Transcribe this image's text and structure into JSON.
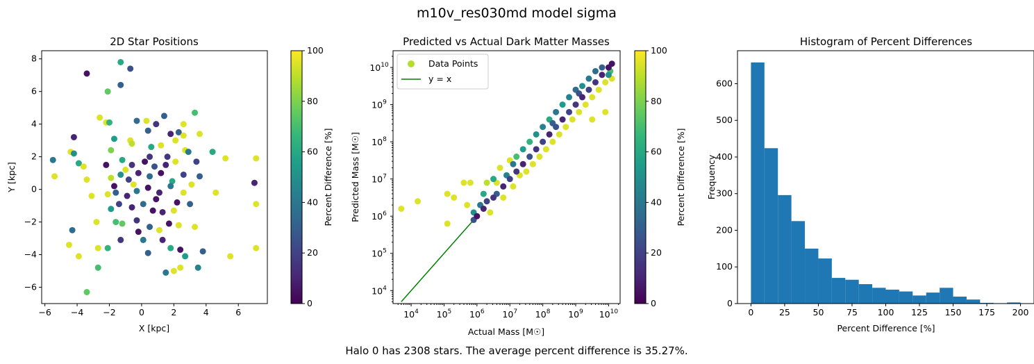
{
  "figure": {
    "suptitle": "m10v_res030md model sigma",
    "footer": "Halo 0 has 2308 stars. The average percent difference is 35.27%."
  },
  "colors": {
    "viridis_stops": [
      "#440154",
      "#482878",
      "#3e4989",
      "#31688e",
      "#26828e",
      "#1f9e89",
      "#35b779",
      "#6ece58",
      "#b5de2b",
      "#fde725"
    ],
    "line": "#008000",
    "bars": "#1f77b4",
    "legend_marker": "#b5de2b"
  },
  "chart_data": [
    {
      "id": "positions",
      "type": "scatter",
      "title": "2D Star Positions",
      "xlabel": "X [kpc]",
      "ylabel": "Y [kpc]",
      "xlim": [
        -6.2,
        7.8
      ],
      "ylim": [
        -7.0,
        8.5
      ],
      "xticks": [
        -6,
        -4,
        -2,
        0,
        2,
        4,
        6
      ],
      "yticks": [
        -6,
        -4,
        -2,
        0,
        2,
        4,
        6,
        8
      ],
      "colorbar": {
        "label": "Percent Difference [%]",
        "range": [
          0,
          100
        ],
        "ticks": [
          0,
          20,
          40,
          60,
          80,
          100
        ]
      },
      "points": [
        [
          -3.4,
          7.1,
          5
        ],
        [
          -1.3,
          7.8,
          60
        ],
        [
          -0.7,
          7.4,
          25
        ],
        [
          -2.1,
          6.0,
          75
        ],
        [
          -1.3,
          6.4,
          30
        ],
        [
          -2.6,
          4.4,
          95
        ],
        [
          -2.2,
          4.1,
          95
        ],
        [
          -2.0,
          4.1,
          65
        ],
        [
          -0.3,
          4.2,
          35
        ],
        [
          0.3,
          4.2,
          95
        ],
        [
          1.4,
          4.5,
          30
        ],
        [
          3.3,
          4.7,
          70
        ],
        [
          2.6,
          4.0,
          95
        ],
        [
          -4.2,
          3.2,
          10
        ],
        [
          -1.7,
          3.1,
          55
        ],
        [
          -0.7,
          3.0,
          95
        ],
        [
          0.4,
          3.6,
          30
        ],
        [
          0.9,
          4.0,
          15
        ],
        [
          1.8,
          3.4,
          10
        ],
        [
          2.3,
          3.5,
          30
        ],
        [
          2.6,
          3.3,
          95
        ],
        [
          3.6,
          3.4,
          95
        ],
        [
          -4.4,
          2.3,
          95
        ],
        [
          -4.2,
          2.2,
          50
        ],
        [
          -1.9,
          2.4,
          80
        ],
        [
          -0.6,
          2.8,
          90
        ],
        [
          0.5,
          2.0,
          15
        ],
        [
          1.2,
          2.7,
          95
        ],
        [
          2.1,
          3.0,
          95
        ],
        [
          2.7,
          2.4,
          95
        ],
        [
          2.9,
          2.3,
          40
        ],
        [
          4.4,
          2.3,
          60
        ],
        [
          -5.5,
          1.8,
          40
        ],
        [
          -3.9,
          1.6,
          60
        ],
        [
          -3.6,
          1.4,
          95
        ],
        [
          -2.2,
          1.5,
          5
        ],
        [
          -1.2,
          1.8,
          60
        ],
        [
          -0.6,
          1.5,
          15
        ],
        [
          0.2,
          1.7,
          5
        ],
        [
          0.8,
          1.4,
          25
        ],
        [
          1.5,
          1.5,
          10
        ],
        [
          2.1,
          1.7,
          95
        ],
        [
          3.4,
          1.7,
          20
        ],
        [
          5.2,
          1.9,
          95
        ],
        [
          7.1,
          1.9,
          95
        ],
        [
          -5.4,
          0.8,
          95
        ],
        [
          -3.4,
          0.6,
          95
        ],
        [
          -1.9,
          0.7,
          90
        ],
        [
          -1.3,
          0.9,
          50
        ],
        [
          -0.8,
          0.6,
          20
        ],
        [
          -0.2,
          1.0,
          10
        ],
        [
          0.5,
          0.8,
          35
        ],
        [
          1.2,
          1.0,
          5
        ],
        [
          1.9,
          0.5,
          60
        ],
        [
          2.6,
          0.9,
          20
        ],
        [
          3.6,
          0.8,
          30
        ],
        [
          7.0,
          0.4,
          10
        ],
        [
          -3.1,
          -0.4,
          95
        ],
        [
          -2.1,
          -0.3,
          95
        ],
        [
          -1.6,
          -0.2,
          30
        ],
        [
          -0.9,
          -0.4,
          10
        ],
        [
          -0.3,
          -0.1,
          40
        ],
        [
          0.4,
          0.1,
          5
        ],
        [
          1.1,
          -0.2,
          10
        ],
        [
          1.8,
          0.2,
          40
        ],
        [
          2.6,
          -0.2,
          95
        ],
        [
          3.1,
          0.3,
          95
        ],
        [
          4.6,
          -0.2,
          95
        ],
        [
          -1.9,
          -1.2,
          55
        ],
        [
          -1.4,
          -0.9,
          20
        ],
        [
          -0.6,
          -1.1,
          10
        ],
        [
          0.1,
          -0.9,
          35
        ],
        [
          0.7,
          -1.3,
          5
        ],
        [
          1.3,
          -1.4,
          10
        ],
        [
          2.0,
          -1.3,
          95
        ],
        [
          3.0,
          -0.9,
          30
        ],
        [
          7.1,
          -0.9,
          95
        ],
        [
          -4.3,
          -2.5,
          35
        ],
        [
          -2.8,
          -2.0,
          95
        ],
        [
          -1.6,
          -2.0,
          70
        ],
        [
          -1.2,
          -2.1,
          75
        ],
        [
          -0.3,
          -1.9,
          15
        ],
        [
          0.5,
          -2.3,
          30
        ],
        [
          1.1,
          -2.5,
          95
        ],
        [
          1.7,
          -2.1,
          5
        ],
        [
          2.3,
          -2.2,
          95
        ],
        [
          3.3,
          -2.3,
          95
        ],
        [
          -4.5,
          -3.4,
          95
        ],
        [
          -3.9,
          -4.1,
          95
        ],
        [
          -2.7,
          -3.6,
          95
        ],
        [
          -2.1,
          -3.6,
          65
        ],
        [
          -1.3,
          -3.1,
          15
        ],
        [
          0.1,
          -3.1,
          40
        ],
        [
          0.4,
          -3.9,
          30
        ],
        [
          1.3,
          -3.1,
          10
        ],
        [
          1.8,
          -3.6,
          60
        ],
        [
          2.4,
          -3.7,
          5
        ],
        [
          3.8,
          -3.8,
          30
        ],
        [
          5.5,
          -4.1,
          95
        ],
        [
          7.1,
          -3.6,
          95
        ],
        [
          -2.7,
          -4.8,
          70
        ],
        [
          -3.4,
          -6.3,
          75
        ],
        [
          1.5,
          -5.1,
          40
        ],
        [
          2.0,
          -5.0,
          95
        ],
        [
          2.4,
          -4.8,
          95
        ],
        [
          2.7,
          -4.1,
          55
        ],
        [
          3.5,
          -4.8,
          45
        ],
        [
          -0.5,
          0.3,
          95
        ],
        [
          0.9,
          -0.6,
          5
        ],
        [
          -1.0,
          1.2,
          95
        ],
        [
          1.6,
          2.0,
          15
        ],
        [
          -0.2,
          -2.6,
          5
        ],
        [
          0.6,
          2.6,
          60
        ],
        [
          2.2,
          -0.8,
          5
        ],
        [
          -1.7,
          0.2,
          5
        ]
      ]
    },
    {
      "id": "masses",
      "type": "scatter",
      "scale": "log",
      "title": "Predicted vs Actual Dark Matter Masses",
      "xlabel": "Actual Mass [M☉]",
      "ylabel": "Predicted Mass [M☉]",
      "xlim_log10": [
        3.45,
        10.35
      ],
      "ylim_log10": [
        3.65,
        10.45
      ],
      "xticks_log10": [
        4,
        5,
        6,
        7,
        8,
        9,
        10
      ],
      "yticks_log10": [
        4,
        5,
        6,
        7,
        8,
        9,
        10
      ],
      "colorbar": {
        "label": "Percent Difference [%]",
        "range": [
          0,
          100
        ],
        "ticks": [
          0,
          20,
          40,
          60,
          80,
          100
        ]
      },
      "legend": {
        "location": "upper-left",
        "entries": [
          "Data Points",
          "y = x"
        ]
      },
      "line": {
        "name": "y = x",
        "x_log10": [
          3.7,
          6.0
        ],
        "y_log10": [
          3.7,
          6.0
        ]
      },
      "points_log10": [
        [
          3.7,
          6.2,
          95
        ],
        [
          4.2,
          6.4,
          95
        ],
        [
          5.1,
          5.8,
          95
        ],
        [
          5.1,
          6.6,
          95
        ],
        [
          5.3,
          6.5,
          95
        ],
        [
          5.6,
          6.9,
          95
        ],
        [
          5.8,
          6.9,
          95
        ],
        [
          5.7,
          6.3,
          95
        ],
        [
          5.9,
          6.1,
          50
        ],
        [
          5.9,
          5.9,
          25
        ],
        [
          6.0,
          6.0,
          5
        ],
        [
          6.1,
          6.3,
          40
        ],
        [
          6.2,
          6.6,
          60
        ],
        [
          6.2,
          6.2,
          10
        ],
        [
          6.3,
          6.9,
          90
        ],
        [
          6.3,
          6.4,
          20
        ],
        [
          6.4,
          6.1,
          95
        ],
        [
          6.5,
          6.5,
          15
        ],
        [
          6.5,
          7.0,
          60
        ],
        [
          6.6,
          6.6,
          30
        ],
        [
          6.7,
          7.3,
          95
        ],
        [
          6.8,
          6.8,
          10
        ],
        [
          6.8,
          6.5,
          95
        ],
        [
          6.9,
          7.1,
          45
        ],
        [
          7.0,
          7.0,
          20
        ],
        [
          7.0,
          7.5,
          95
        ],
        [
          7.1,
          6.8,
          95
        ],
        [
          7.2,
          7.2,
          15
        ],
        [
          7.2,
          7.6,
          70
        ],
        [
          7.3,
          7.1,
          95
        ],
        [
          7.4,
          7.4,
          10
        ],
        [
          7.4,
          7.8,
          55
        ],
        [
          7.5,
          7.2,
          95
        ],
        [
          7.6,
          7.6,
          25
        ],
        [
          7.6,
          8.0,
          65
        ],
        [
          7.7,
          7.4,
          95
        ],
        [
          7.8,
          7.8,
          15
        ],
        [
          7.8,
          8.2,
          50
        ],
        [
          7.9,
          7.6,
          95
        ],
        [
          8.0,
          8.0,
          20
        ],
        [
          8.0,
          8.4,
          45
        ],
        [
          8.1,
          7.8,
          95
        ],
        [
          8.2,
          8.2,
          10
        ],
        [
          8.2,
          8.6,
          60
        ],
        [
          8.3,
          8.0,
          95
        ],
        [
          8.4,
          8.4,
          25
        ],
        [
          8.4,
          8.8,
          40
        ],
        [
          8.5,
          8.2,
          95
        ],
        [
          8.6,
          8.6,
          10
        ],
        [
          8.6,
          9.0,
          55
        ],
        [
          8.7,
          8.4,
          95
        ],
        [
          8.8,
          8.8,
          20
        ],
        [
          8.8,
          9.2,
          45
        ],
        [
          8.9,
          8.6,
          95
        ],
        [
          9.0,
          9.0,
          15
        ],
        [
          9.0,
          9.4,
          35
        ],
        [
          9.1,
          8.8,
          95
        ],
        [
          9.2,
          9.2,
          10
        ],
        [
          9.2,
          9.5,
          50
        ],
        [
          9.3,
          9.0,
          95
        ],
        [
          9.4,
          9.4,
          20
        ],
        [
          9.4,
          9.7,
          40
        ],
        [
          9.5,
          9.2,
          95
        ],
        [
          9.6,
          9.6,
          15
        ],
        [
          9.6,
          9.9,
          35
        ],
        [
          9.7,
          9.4,
          95
        ],
        [
          9.8,
          9.8,
          10
        ],
        [
          9.8,
          10.0,
          30
        ],
        [
          9.9,
          9.6,
          95
        ],
        [
          10.0,
          10.0,
          5
        ],
        [
          10.0,
          9.8,
          50
        ],
        [
          10.1,
          10.1,
          5
        ],
        [
          10.1,
          9.7,
          95
        ],
        [
          9.9,
          8.8,
          95
        ],
        [
          9.5,
          8.6,
          95
        ],
        [
          6.6,
          6.9,
          95
        ],
        [
          7.1,
          7.4,
          40
        ],
        [
          8.3,
          8.5,
          30
        ],
        [
          9.1,
          9.3,
          25
        ],
        [
          10.05,
          9.9,
          70
        ]
      ]
    },
    {
      "id": "histogram",
      "type": "bar",
      "title": "Histogram of Percent Differences",
      "xlabel": "Percent Difference [%]",
      "ylabel": "Frequency",
      "xlim": [
        -10,
        210
      ],
      "ylim": [
        0,
        690
      ],
      "xticks": [
        0,
        25,
        50,
        75,
        100,
        125,
        150,
        175,
        200
      ],
      "yticks": [
        0,
        100,
        200,
        300,
        400,
        500,
        600
      ],
      "bin_edges": [
        0,
        10,
        20,
        30,
        40,
        50,
        60,
        70,
        80,
        90,
        100,
        110,
        120,
        130,
        140,
        150,
        160,
        170,
        180,
        190,
        200
      ],
      "values": [
        658,
        424,
        296,
        225,
        150,
        123,
        70,
        65,
        53,
        43,
        38,
        33,
        22,
        30,
        43,
        19,
        11,
        2,
        1,
        3
      ]
    }
  ]
}
